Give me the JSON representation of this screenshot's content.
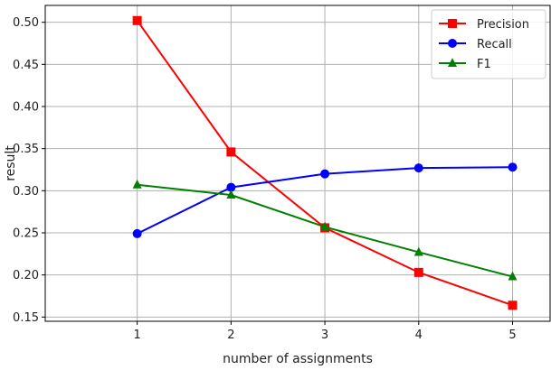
{
  "chart_data": {
    "type": "line",
    "title": "",
    "xlabel": "number of assignments",
    "ylabel": "result",
    "x": [
      1,
      2,
      3,
      4,
      5
    ],
    "xlim": [
      0.02,
      5.4
    ],
    "ylim": [
      0.145,
      0.52
    ],
    "xticks": [
      "1",
      "2",
      "3",
      "4",
      "5"
    ],
    "yticks": [
      "0.15",
      "0.20",
      "0.25",
      "0.30",
      "0.35",
      "0.40",
      "0.45",
      "0.50"
    ],
    "grid": true,
    "legend_position": "top-right",
    "series": [
      {
        "name": "Precision",
        "color": "#ff0000",
        "marker": "square",
        "values": [
          0.502,
          0.346,
          0.256,
          0.203,
          0.164
        ]
      },
      {
        "name": "Recall",
        "color": "#0000ff",
        "marker": "circle",
        "values": [
          0.249,
          0.304,
          0.32,
          0.327,
          0.328
        ]
      },
      {
        "name": "F1",
        "color": "#008000",
        "marker": "triangle",
        "values": [
          0.307,
          0.295,
          0.257,
          0.227,
          0.198
        ]
      }
    ]
  }
}
